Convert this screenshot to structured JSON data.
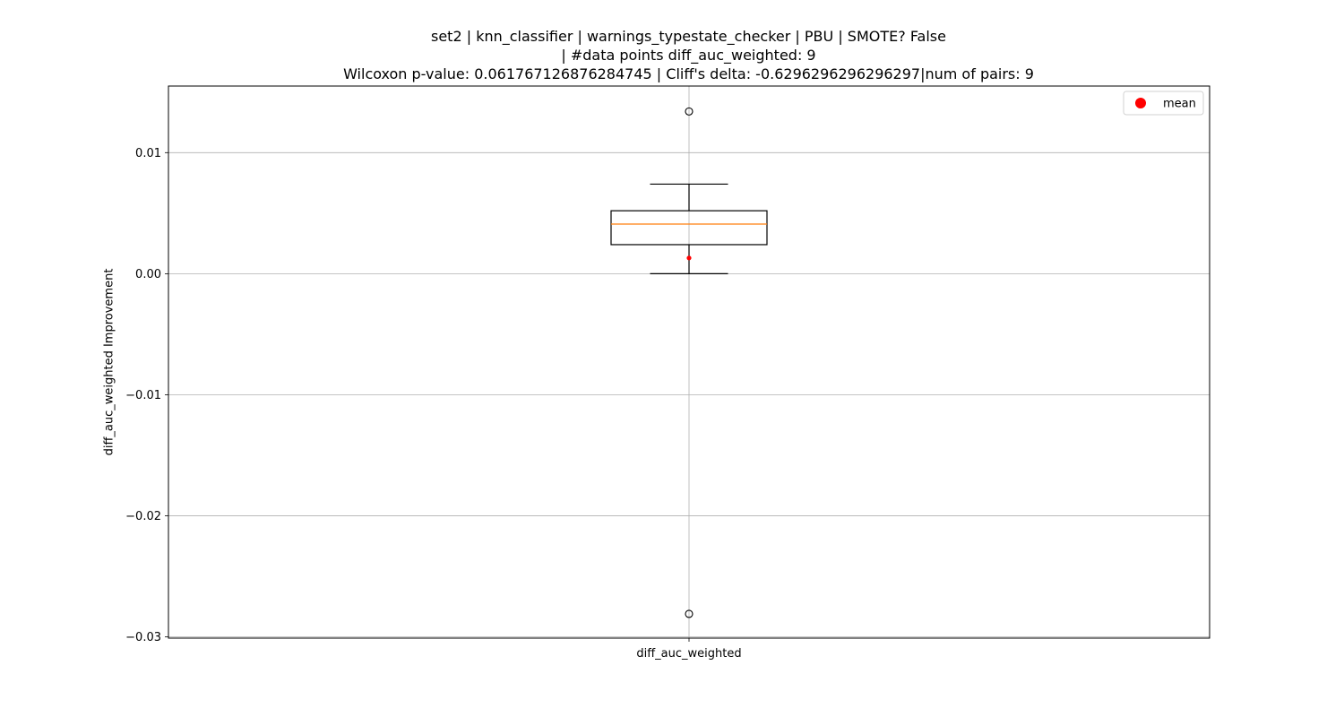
{
  "chart_data": {
    "type": "box",
    "title_lines": [
      "set2 | knn_classifier | warnings_typestate_checker | PBU | SMOTE? False",
      "| #data points diff_auc_weighted: 9",
      "Wilcoxon p-value: 0.061767126876284745 | Cliff's delta: -0.6296296296296297|num of pairs: 9"
    ],
    "xlabel": "",
    "ylabel": "diff_auc_weighted Improvement",
    "categories": [
      "diff_auc_weighted"
    ],
    "ylim": [
      -0.0301,
      0.0155
    ],
    "yticks": [
      0.01,
      0.0,
      -0.01,
      -0.02,
      -0.03
    ],
    "ytick_labels": [
      "0.01",
      "0.00",
      "−0.01",
      "−0.02",
      "−0.03"
    ],
    "grid": true,
    "boxes": [
      {
        "category": "diff_auc_weighted",
        "whisker_low": 0.0,
        "q1": 0.0024,
        "median": 0.0041,
        "q3": 0.0052,
        "whisker_high": 0.0074,
        "mean": 0.0013,
        "outliers": [
          0.0134,
          -0.0281
        ]
      }
    ],
    "legend": {
      "position": "top-right",
      "entries": [
        {
          "label": "mean",
          "color": "#ff0000"
        }
      ]
    },
    "colors": {
      "median": "#ff7f0e",
      "mean": "#ff0000",
      "grid": "#b0b0b0",
      "box": "#000000"
    }
  }
}
